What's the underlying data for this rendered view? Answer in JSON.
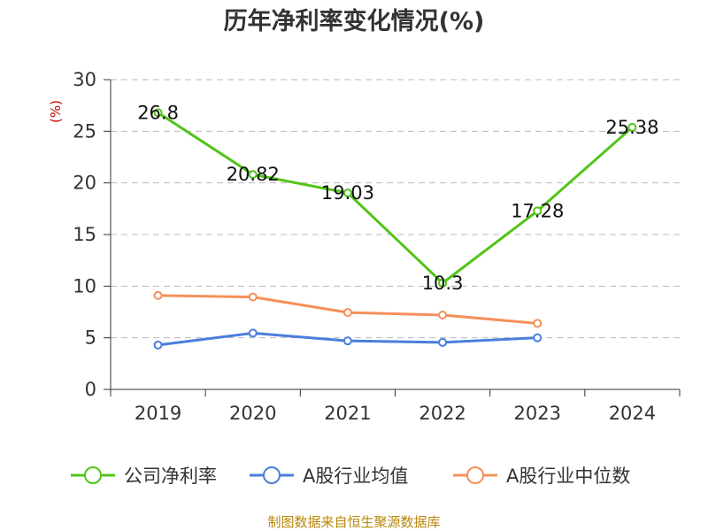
{
  "chart_data": {
    "type": "line",
    "title": "历年净利率变化情况(%)",
    "y_unit": "(%)",
    "categories": [
      "2019",
      "2020",
      "2021",
      "2022",
      "2023",
      "2024"
    ],
    "ylim": [
      0,
      30
    ],
    "yticks": [
      0,
      5,
      10,
      15,
      20,
      25,
      30
    ],
    "grid": true,
    "legend_position": "bottom",
    "series": [
      {
        "name": "公司净利率",
        "color": "#52c41a",
        "values": [
          26.8,
          20.82,
          19.03,
          10.3,
          17.28,
          25.38
        ],
        "data_labels": [
          "26.8",
          "20.82",
          "19.03",
          "10.3",
          "17.28",
          "25.38"
        ]
      },
      {
        "name": "A股行业均值",
        "color": "#4a7fdb",
        "values": [
          4.3,
          5.45,
          4.7,
          4.55,
          5.0,
          null
        ]
      },
      {
        "name": "A股行业中位数",
        "color": "#f5905a",
        "values": [
          9.1,
          8.95,
          7.45,
          7.2,
          6.4,
          null
        ]
      }
    ]
  },
  "footer": "制图数据来自恒生聚源数据库"
}
